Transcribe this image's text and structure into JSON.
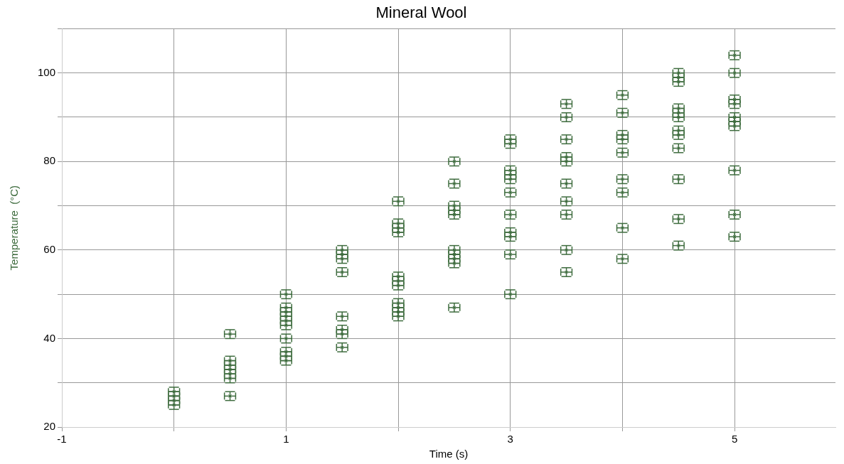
{
  "chart_data": {
    "type": "scatter",
    "title": "Mineral Wool",
    "xlabel": "Time (s)",
    "ylabel": "Temperature  (°C)",
    "marker": "cross",
    "grid": true,
    "legend": false,
    "xlim": [
      -1,
      5.9
    ],
    "xticks": [
      -1,
      {
        "value": 0,
        "label": null
      },
      1,
      {
        "value": 2,
        "label": null
      },
      3,
      {
        "value": 4,
        "label": null
      },
      5
    ],
    "ylim": [
      20,
      110
    ],
    "yticks": [
      20,
      {
        "value": 30,
        "label": null
      },
      40,
      {
        "value": 50,
        "label": null
      },
      60,
      {
        "value": 70,
        "label": null
      },
      80,
      {
        "value": 90,
        "label": null
      },
      100,
      {
        "value": 110,
        "label": null
      }
    ],
    "series": [
      {
        "color": "#3d6b3d",
        "x": [
          0,
          0,
          0,
          0,
          0.5,
          0.5,
          0.5,
          0.5,
          0.5,
          0.5,
          0.5,
          1,
          1,
          1,
          1,
          1,
          1,
          1,
          1,
          1,
          1,
          1.5,
          1.5,
          1.5,
          1.5,
          1.5,
          1.5,
          1.5,
          1.5,
          2,
          2,
          2,
          2,
          2,
          2,
          2,
          2,
          2,
          2,
          2,
          2.5,
          2.5,
          2.5,
          2.5,
          2.5,
          2.5,
          2.5,
          2.5,
          2.5,
          2.5,
          3,
          3,
          3,
          3,
          3,
          3,
          3,
          3,
          3,
          3,
          3,
          3.5,
          3.5,
          3.5,
          3.5,
          3.5,
          3.5,
          3.5,
          3.5,
          3.5,
          3.5,
          4,
          4,
          4,
          4,
          4,
          4,
          4,
          4,
          4,
          4.5,
          4.5,
          4.5,
          4.5,
          4.5,
          4.5,
          4.5,
          4.5,
          4.5,
          4.5,
          4.5,
          4.5,
          5,
          5,
          5,
          5,
          5,
          5,
          5,
          5,
          5,
          5
        ],
        "values": [
          25,
          26,
          27,
          28,
          41,
          35,
          34,
          33,
          32,
          31,
          27,
          50,
          47,
          46,
          45,
          44,
          43,
          40,
          37,
          36,
          35,
          60,
          59,
          58,
          55,
          45,
          42,
          41,
          38,
          71,
          66,
          65,
          64,
          54,
          53,
          52,
          48,
          47,
          46,
          45,
          80,
          75,
          70,
          69,
          68,
          60,
          59,
          58,
          57,
          47,
          85,
          84,
          78,
          77,
          76,
          73,
          68,
          64,
          63,
          59,
          50,
          93,
          90,
          85,
          81,
          80,
          75,
          71,
          68,
          60,
          55,
          95,
          91,
          86,
          85,
          82,
          76,
          73,
          65,
          58,
          100,
          99,
          98,
          92,
          91,
          90,
          87,
          86,
          83,
          76,
          67,
          61,
          104,
          100,
          94,
          93,
          90,
          89,
          88,
          78,
          68,
          63
        ],
        "errors": [
          1,
          1,
          1,
          1,
          1,
          1,
          1,
          1,
          1,
          1,
          1,
          1,
          1,
          1,
          1,
          1,
          1,
          1,
          1,
          1,
          1,
          1,
          1,
          1,
          1,
          1,
          1,
          1,
          1,
          1,
          1,
          1,
          1,
          1,
          1,
          1,
          1,
          1,
          1,
          1,
          1,
          1,
          1,
          1,
          1,
          1,
          1,
          1,
          1,
          1,
          1,
          1,
          1,
          1,
          1,
          1,
          1,
          1,
          1,
          1,
          1,
          1,
          1,
          1,
          1,
          1,
          1,
          1,
          1,
          1,
          1,
          1,
          1,
          1,
          1,
          1,
          1,
          1,
          1,
          1,
          1,
          1,
          1,
          1,
          1,
          1,
          1,
          1,
          1,
          1,
          1,
          1,
          1,
          1,
          1,
          1,
          1,
          1,
          1,
          1,
          1,
          1
        ],
        "xerrors": [
          0.05,
          0.05,
          0.05,
          0.05,
          0.05,
          0.05,
          0.05,
          0.05,
          0.05,
          0.05,
          0.05,
          0.05,
          0.05,
          0.05,
          0.05,
          0.05,
          0.05,
          0.05,
          0.05,
          0.05,
          0.05,
          0.05,
          0.05,
          0.05,
          0.05,
          0.05,
          0.05,
          0.05,
          0.05,
          0.05,
          0.05,
          0.05,
          0.05,
          0.05,
          0.05,
          0.05,
          0.05,
          0.05,
          0.05,
          0.05,
          0.05,
          0.05,
          0.05,
          0.05,
          0.05,
          0.05,
          0.05,
          0.05,
          0.05,
          0.05,
          0.05,
          0.05,
          0.05,
          0.05,
          0.05,
          0.05,
          0.05,
          0.05,
          0.05,
          0.05,
          0.05,
          0.05,
          0.05,
          0.05,
          0.05,
          0.05,
          0.05,
          0.05,
          0.05,
          0.05,
          0.05,
          0.05,
          0.05,
          0.05,
          0.05,
          0.05,
          0.05,
          0.05,
          0.05,
          0.05,
          0.05,
          0.05,
          0.05,
          0.05,
          0.05,
          0.05,
          0.05,
          0.05,
          0.05,
          0.05,
          0.05,
          0.05,
          0.05,
          0.05,
          0.05,
          0.05,
          0.05,
          0.05,
          0.05,
          0.05,
          0.05,
          0.05
        ]
      }
    ]
  }
}
